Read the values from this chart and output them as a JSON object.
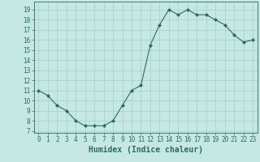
{
  "x": [
    0,
    1,
    2,
    3,
    4,
    5,
    6,
    7,
    8,
    9,
    10,
    11,
    12,
    13,
    14,
    15,
    16,
    17,
    18,
    19,
    20,
    21,
    22,
    23
  ],
  "y": [
    11,
    10.5,
    9.5,
    9,
    8,
    7.5,
    7.5,
    7.5,
    8.0,
    9.5,
    11,
    11.5,
    15.5,
    17.5,
    19,
    18.5,
    19,
    18.5,
    18.5,
    18,
    17.5,
    16.5,
    15.8,
    16
  ],
  "line_color": "#2e6b5e",
  "marker": "D",
  "marker_size": 2.0,
  "bg_color": "#c5e8e5",
  "grid_color": "#a8cdc9",
  "xlabel": "Humidex (Indice chaleur)",
  "xlim": [
    -0.5,
    23.5
  ],
  "ylim": [
    6.8,
    19.8
  ],
  "yticks": [
    7,
    8,
    9,
    10,
    11,
    12,
    13,
    14,
    15,
    16,
    17,
    18,
    19
  ],
  "xticks": [
    0,
    1,
    2,
    3,
    4,
    5,
    6,
    7,
    8,
    9,
    10,
    11,
    12,
    13,
    14,
    15,
    16,
    17,
    18,
    19,
    20,
    21,
    22,
    23
  ],
  "tick_color": "#2e6b5e",
  "axis_color": "#2e6b5e",
  "font_color": "#2e6b5e",
  "xlabel_fontsize": 7,
  "tick_fontsize": 5.5,
  "linewidth": 0.8
}
